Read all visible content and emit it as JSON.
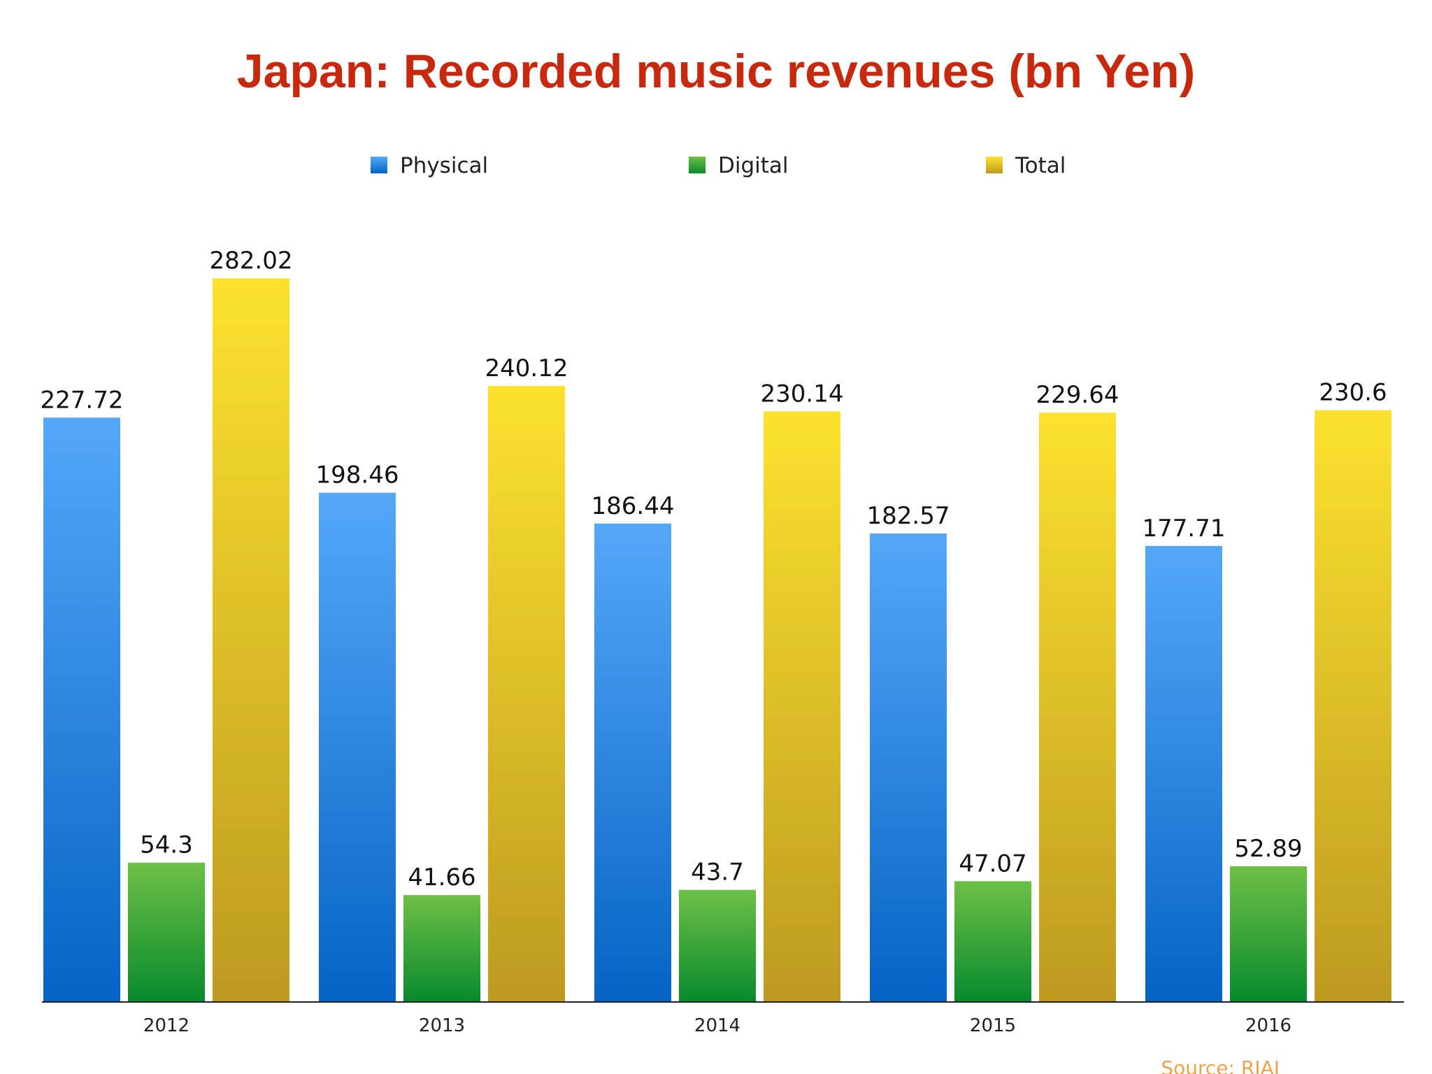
{
  "chart_data": {
    "type": "bar",
    "title": "Japan: Recorded music revenues (bn Yen)",
    "categories": [
      "2012",
      "2013",
      "2014",
      "2015",
      "2016"
    ],
    "series": [
      {
        "name": "Physical",
        "values": [
          227.72,
          198.46,
          186.44,
          182.57,
          177.71
        ],
        "labels": [
          "227.72",
          "198.46",
          "186.44",
          "182.57",
          "177.71"
        ],
        "color_top": "#55a8f8",
        "color_bottom": "#0563c4"
      },
      {
        "name": "Digital",
        "values": [
          54.3,
          41.66,
          43.7,
          47.07,
          52.89
        ],
        "labels": [
          "54.3",
          "41.66",
          "43.7",
          "47.07",
          "52.89"
        ],
        "color_top": "#6ec046",
        "color_bottom": "#078a2c"
      },
      {
        "name": "Total",
        "values": [
          282.02,
          240.12,
          230.14,
          229.64,
          230.6
        ],
        "labels": [
          "282.02",
          "240.12",
          "230.14",
          "229.64",
          "230.6"
        ],
        "color_top": "#fce22e",
        "color_bottom": "#bd9a20"
      }
    ],
    "ylim": [
      0,
      282.02
    ],
    "grid": false,
    "legend_position": "top-center",
    "title_color": "#c7290e",
    "source": "Source: RIAJ",
    "source_color": "#e8a64c",
    "axis_color": "#222222"
  }
}
